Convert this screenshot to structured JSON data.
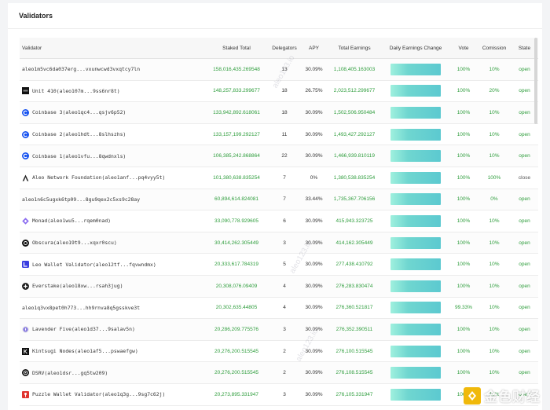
{
  "panel": {
    "title": "Validators"
  },
  "columns": {
    "validator": "Validator",
    "staked_total": "Staked Total",
    "delegators": "Delegators",
    "apy": "APY",
    "total_earnings": "Total Earnings",
    "daily_earnings_change": "Daily Earnings Change",
    "vote": "Vote",
    "commission": "Comission",
    "state": "State"
  },
  "rows": [
    {
      "icon": "none",
      "name": "aleo1m5vc6da037erg...vxunwcwd3vxqtcy7ln",
      "staked": "158,016,435.269548",
      "delegators": "13",
      "apy": "30.09%",
      "earnings": "1,108,405.163003",
      "vote": "100%",
      "commission": "10%",
      "state": "open"
    },
    {
      "icon": "unit410-logo-icon",
      "name": "Unit 410(aleo107m...9ss6nr8t)",
      "staked": "148,257,833.299677",
      "delegators": "18",
      "apy": "26.75%",
      "earnings": "2,023,512.299677",
      "vote": "100%",
      "commission": "20%",
      "state": "open"
    },
    {
      "icon": "coinbase-logo-icon",
      "name": "Coinbase 3(aleo1qc4...qsjv6p52)",
      "staked": "133,942,892.618061",
      "delegators": "18",
      "apy": "30.09%",
      "earnings": "1,502,506.950484",
      "vote": "100%",
      "commission": "10%",
      "state": "open"
    },
    {
      "icon": "coinbase-logo-icon",
      "name": "Coinbase 2(aleo1hdt...8slhszhs)",
      "staked": "133,157,199.292127",
      "delegators": "11",
      "apy": "30.09%",
      "earnings": "1,493,427.292127",
      "vote": "100%",
      "commission": "10%",
      "state": "open"
    },
    {
      "icon": "coinbase-logo-icon",
      "name": "Coinbase 1(aleo1vfu...8qwdnxls)",
      "staked": "106,385,242.868864",
      "delegators": "22",
      "apy": "30.09%",
      "earnings": "1,466,939.810119",
      "vote": "100%",
      "commission": "10%",
      "state": "open"
    },
    {
      "icon": "aleo-foundation-logo-icon",
      "name": "Aleo Network Foundation(aleo1anf...pq4vyy5t)",
      "staked": "101,380,638.835254",
      "delegators": "7",
      "apy": "0%",
      "earnings": "1,380,538.835254",
      "vote": "100%",
      "commission": "100%",
      "state": "close"
    },
    {
      "icon": "none",
      "name": "aleo1n6c5ugxk6tp09...8gu9qex2c5xs9c28ay",
      "staked": "60,894,614.824081",
      "delegators": "7",
      "apy": "33.44%",
      "earnings": "1,735,367.706156",
      "vote": "100%",
      "commission": "0%",
      "state": "open"
    },
    {
      "icon": "monad-logo-icon",
      "name": "Monad(aleo1wu5...rqem0nad)",
      "staked": "33,090,778.929605",
      "delegators": "6",
      "apy": "30.09%",
      "earnings": "415,943.323725",
      "vote": "100%",
      "commission": "10%",
      "state": "open"
    },
    {
      "icon": "obscura-logo-icon",
      "name": "Obscura(aleo19t9...xqxr0scu)",
      "staked": "30,414,262.305449",
      "delegators": "3",
      "apy": "30.09%",
      "earnings": "414,162.305449",
      "vote": "100%",
      "commission": "10%",
      "state": "open"
    },
    {
      "icon": "leo-wallet-logo-icon",
      "name": "Leo Wallet Validator(aleo12tf...fqvwndmx)",
      "staked": "20,333,617.784319",
      "delegators": "5",
      "apy": "30.09%",
      "earnings": "277,438.410792",
      "vote": "100%",
      "commission": "10%",
      "state": "open"
    },
    {
      "icon": "everstake-logo-icon",
      "name": "Everstake(aleo18xw...rsah3jug)",
      "staked": "20,308,076.09409",
      "delegators": "4",
      "apy": "30.09%",
      "earnings": "276,283.830474",
      "vote": "100%",
      "commission": "10%",
      "state": "open"
    },
    {
      "icon": "none",
      "name": "aleo1q3vx8pet0h773...hh9rnva8q5gsskve3t",
      "staked": "20,302,635.44805",
      "delegators": "4",
      "apy": "30.09%",
      "earnings": "276,360.521817",
      "vote": "99.33%",
      "commission": "10%",
      "state": "open"
    },
    {
      "icon": "lavender-five-logo-icon",
      "name": "Lavender Five(aleo1d37...9salav5n)",
      "staked": "20,286,209.775576",
      "delegators": "3",
      "apy": "30.09%",
      "earnings": "276,352.390511",
      "vote": "100%",
      "commission": "10%",
      "state": "open"
    },
    {
      "icon": "kintsugi-logo-icon",
      "name": "Kintsugi Nodes(aleo1af5...pswaefgw)",
      "staked": "20,276,200.515545",
      "delegators": "2",
      "apy": "30.09%",
      "earnings": "276,100.515545",
      "vote": "100%",
      "commission": "10%",
      "state": "open"
    },
    {
      "icon": "dsrv-logo-icon",
      "name": "DSRV(aleo1dsr...gq5tw209)",
      "staked": "20,276,200.515545",
      "delegators": "2",
      "apy": "30.09%",
      "earnings": "276,108.515545",
      "vote": "100%",
      "commission": "10%",
      "state": "open"
    },
    {
      "icon": "puzzle-wallet-logo-icon",
      "name": "Puzzle Wallet Validator(aleo1q3g...9sg7c62j)",
      "staked": "20,273,895.331947",
      "delegators": "3",
      "apy": "30.09%",
      "earnings": "276,105.331947",
      "vote": "100%",
      "commission": "10%",
      "state": "open"
    }
  ],
  "watermark": {
    "site": "aleo123.io"
  },
  "brand": {
    "name": "金色财经"
  },
  "colors": {
    "green": "#2e9d3c",
    "bar_start": "#9ff0de",
    "bar_end": "#5cc9d0",
    "coinbase": "#1652f0",
    "brand": "#f0b90b"
  }
}
